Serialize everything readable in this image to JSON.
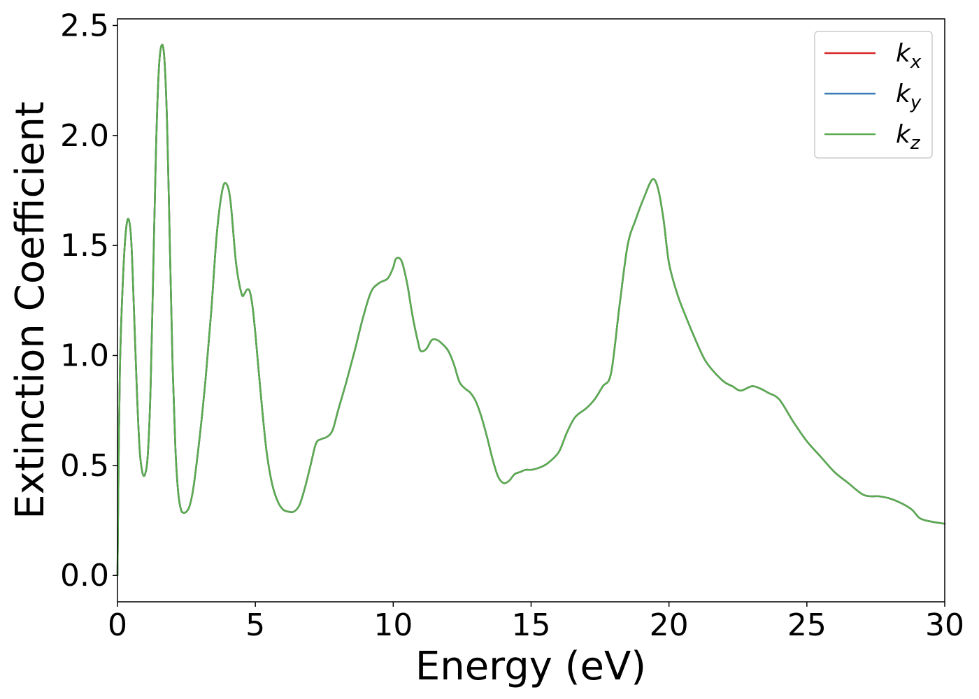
{
  "chart_data": {
    "type": "line",
    "title": "",
    "xlabel": "Energy (eV)",
    "ylabel": "Extinction Coefficient",
    "xlim": [
      0,
      30
    ],
    "ylim": [
      -0.12,
      2.53
    ],
    "xticks": [
      0,
      5,
      10,
      15,
      20,
      25,
      30
    ],
    "xtick_labels": [
      "0",
      "5",
      "10",
      "15",
      "20",
      "25",
      "30"
    ],
    "yticks": [
      0.0,
      0.5,
      1.0,
      1.5,
      2.0,
      2.5
    ],
    "ytick_labels": [
      "0.0",
      "0.5",
      "1.0",
      "1.5",
      "2.0",
      "2.5"
    ],
    "grid": false,
    "legend_position": "top-right",
    "series": [
      {
        "name": "k",
        "subscript": "x",
        "color": "#d62728",
        "x": [
          0,
          0.05,
          0.1,
          0.2,
          0.3,
          0.4,
          0.5,
          0.6,
          0.7,
          0.8,
          0.9,
          1.0,
          1.1,
          1.2,
          1.3,
          1.4,
          1.5,
          1.6,
          1.7,
          1.8,
          1.9,
          2.0,
          2.1,
          2.2,
          2.3,
          2.4,
          2.5,
          2.6,
          2.7,
          2.8,
          3.0,
          3.2,
          3.4,
          3.6,
          3.8,
          3.95,
          4.1,
          4.3,
          4.5,
          4.6,
          4.7,
          4.8,
          4.9,
          5.0,
          5.2,
          5.4,
          5.6,
          5.8,
          6.0,
          6.2,
          6.4,
          6.6,
          6.8,
          7.0,
          7.2,
          7.4,
          7.6,
          7.8,
          8.0,
          8.3,
          8.6,
          8.9,
          9.2,
          9.5,
          9.8,
          10.0,
          10.1,
          10.3,
          10.5,
          10.7,
          10.9,
          11.0,
          11.2,
          11.4,
          11.6,
          11.8,
          12.0,
          12.2,
          12.4,
          12.6,
          12.8,
          13.0,
          13.2,
          13.4,
          13.6,
          13.8,
          14.0,
          14.2,
          14.4,
          14.6,
          14.8,
          15.0,
          15.3,
          15.6,
          16.0,
          16.3,
          16.6,
          17.0,
          17.3,
          17.6,
          17.9,
          18.2,
          18.5,
          18.8,
          19.1,
          19.4,
          19.6,
          19.8,
          20.0,
          20.3,
          20.6,
          21.0,
          21.3,
          21.6,
          22.0,
          22.3,
          22.6,
          23.0,
          23.3,
          23.6,
          24.0,
          24.5,
          25.0,
          25.5,
          26.0,
          26.5,
          27.0,
          27.3,
          27.6,
          28.0,
          28.4,
          28.8,
          29.1,
          29.5,
          30.0
        ],
        "values": [
          0.0,
          0.6,
          1.0,
          1.35,
          1.56,
          1.62,
          1.52,
          1.2,
          0.85,
          0.58,
          0.47,
          0.46,
          0.55,
          0.85,
          1.4,
          1.95,
          2.3,
          2.41,
          2.35,
          2.05,
          1.5,
          0.95,
          0.58,
          0.38,
          0.3,
          0.285,
          0.29,
          0.31,
          0.36,
          0.44,
          0.65,
          0.9,
          1.2,
          1.55,
          1.75,
          1.78,
          1.7,
          1.42,
          1.28,
          1.28,
          1.3,
          1.29,
          1.22,
          1.1,
          0.82,
          0.57,
          0.42,
          0.34,
          0.3,
          0.29,
          0.29,
          0.32,
          0.4,
          0.5,
          0.6,
          0.62,
          0.63,
          0.66,
          0.75,
          0.88,
          1.02,
          1.17,
          1.29,
          1.33,
          1.35,
          1.4,
          1.44,
          1.43,
          1.33,
          1.18,
          1.06,
          1.02,
          1.03,
          1.07,
          1.07,
          1.05,
          1.02,
          0.96,
          0.88,
          0.85,
          0.83,
          0.79,
          0.72,
          0.63,
          0.53,
          0.45,
          0.42,
          0.43,
          0.46,
          0.47,
          0.48,
          0.48,
          0.49,
          0.51,
          0.56,
          0.65,
          0.72,
          0.76,
          0.8,
          0.86,
          0.92,
          1.22,
          1.5,
          1.62,
          1.72,
          1.8,
          1.76,
          1.62,
          1.42,
          1.28,
          1.18,
          1.06,
          0.98,
          0.93,
          0.88,
          0.86,
          0.84,
          0.86,
          0.85,
          0.83,
          0.8,
          0.7,
          0.61,
          0.54,
          0.47,
          0.42,
          0.37,
          0.36,
          0.36,
          0.35,
          0.33,
          0.3,
          0.26,
          0.245,
          0.235
        ]
      },
      {
        "name": "k",
        "subscript": "y",
        "color": "#3b7bb8",
        "x": [
          0,
          0.05,
          0.1,
          0.2,
          0.3,
          0.4,
          0.5,
          0.6,
          0.7,
          0.8,
          0.9,
          1.0,
          1.1,
          1.2,
          1.3,
          1.4,
          1.5,
          1.6,
          1.7,
          1.8,
          1.9,
          2.0,
          2.1,
          2.2,
          2.3,
          2.4,
          2.5,
          2.6,
          2.7,
          2.8,
          3.0,
          3.2,
          3.4,
          3.6,
          3.8,
          3.95,
          4.1,
          4.3,
          4.5,
          4.6,
          4.7,
          4.8,
          4.9,
          5.0,
          5.2,
          5.4,
          5.6,
          5.8,
          6.0,
          6.2,
          6.4,
          6.6,
          6.8,
          7.0,
          7.2,
          7.4,
          7.6,
          7.8,
          8.0,
          8.3,
          8.6,
          8.9,
          9.2,
          9.5,
          9.8,
          10.0,
          10.1,
          10.3,
          10.5,
          10.7,
          10.9,
          11.0,
          11.2,
          11.4,
          11.6,
          11.8,
          12.0,
          12.2,
          12.4,
          12.6,
          12.8,
          13.0,
          13.2,
          13.4,
          13.6,
          13.8,
          14.0,
          14.2,
          14.4,
          14.6,
          14.8,
          15.0,
          15.3,
          15.6,
          16.0,
          16.3,
          16.6,
          17.0,
          17.3,
          17.6,
          17.9,
          18.2,
          18.5,
          18.8,
          19.1,
          19.4,
          19.6,
          19.8,
          20.0,
          20.3,
          20.6,
          21.0,
          21.3,
          21.6,
          22.0,
          22.3,
          22.6,
          23.0,
          23.3,
          23.6,
          24.0,
          24.5,
          25.0,
          25.5,
          26.0,
          26.5,
          27.0,
          27.3,
          27.6,
          28.0,
          28.4,
          28.8,
          29.1,
          29.5,
          30.0
        ],
        "values": [
          0.0,
          0.6,
          1.0,
          1.35,
          1.56,
          1.62,
          1.52,
          1.2,
          0.85,
          0.58,
          0.47,
          0.46,
          0.55,
          0.85,
          1.4,
          1.95,
          2.3,
          2.41,
          2.35,
          2.05,
          1.5,
          0.95,
          0.58,
          0.38,
          0.3,
          0.285,
          0.29,
          0.31,
          0.36,
          0.44,
          0.65,
          0.9,
          1.2,
          1.55,
          1.75,
          1.78,
          1.7,
          1.42,
          1.28,
          1.28,
          1.3,
          1.29,
          1.22,
          1.1,
          0.82,
          0.57,
          0.42,
          0.34,
          0.3,
          0.29,
          0.29,
          0.32,
          0.4,
          0.5,
          0.6,
          0.62,
          0.63,
          0.66,
          0.75,
          0.88,
          1.02,
          1.17,
          1.29,
          1.33,
          1.35,
          1.4,
          1.44,
          1.43,
          1.33,
          1.18,
          1.06,
          1.02,
          1.03,
          1.07,
          1.07,
          1.05,
          1.02,
          0.96,
          0.88,
          0.85,
          0.83,
          0.79,
          0.72,
          0.63,
          0.53,
          0.45,
          0.42,
          0.43,
          0.46,
          0.47,
          0.48,
          0.48,
          0.49,
          0.51,
          0.56,
          0.65,
          0.72,
          0.76,
          0.8,
          0.86,
          0.92,
          1.22,
          1.5,
          1.62,
          1.72,
          1.8,
          1.76,
          1.62,
          1.42,
          1.28,
          1.18,
          1.06,
          0.98,
          0.93,
          0.88,
          0.86,
          0.84,
          0.86,
          0.85,
          0.83,
          0.8,
          0.7,
          0.61,
          0.54,
          0.47,
          0.42,
          0.37,
          0.36,
          0.36,
          0.35,
          0.33,
          0.3,
          0.26,
          0.245,
          0.235
        ]
      },
      {
        "name": "k",
        "subscript": "z",
        "color": "#5aab4f",
        "x": [
          0,
          0.05,
          0.1,
          0.2,
          0.3,
          0.4,
          0.5,
          0.6,
          0.7,
          0.8,
          0.9,
          1.0,
          1.1,
          1.2,
          1.3,
          1.4,
          1.5,
          1.6,
          1.7,
          1.8,
          1.9,
          2.0,
          2.1,
          2.2,
          2.3,
          2.4,
          2.5,
          2.6,
          2.7,
          2.8,
          3.0,
          3.2,
          3.4,
          3.6,
          3.8,
          3.95,
          4.1,
          4.3,
          4.5,
          4.6,
          4.7,
          4.8,
          4.9,
          5.0,
          5.2,
          5.4,
          5.6,
          5.8,
          6.0,
          6.2,
          6.4,
          6.6,
          6.8,
          7.0,
          7.2,
          7.4,
          7.6,
          7.8,
          8.0,
          8.3,
          8.6,
          8.9,
          9.2,
          9.5,
          9.8,
          10.0,
          10.1,
          10.3,
          10.5,
          10.7,
          10.9,
          11.0,
          11.2,
          11.4,
          11.6,
          11.8,
          12.0,
          12.2,
          12.4,
          12.6,
          12.8,
          13.0,
          13.2,
          13.4,
          13.6,
          13.8,
          14.0,
          14.2,
          14.4,
          14.6,
          14.8,
          15.0,
          15.3,
          15.6,
          16.0,
          16.3,
          16.6,
          17.0,
          17.3,
          17.6,
          17.9,
          18.2,
          18.5,
          18.8,
          19.1,
          19.4,
          19.6,
          19.8,
          20.0,
          20.3,
          20.6,
          21.0,
          21.3,
          21.6,
          22.0,
          22.3,
          22.6,
          23.0,
          23.3,
          23.6,
          24.0,
          24.5,
          25.0,
          25.5,
          26.0,
          26.5,
          27.0,
          27.3,
          27.6,
          28.0,
          28.4,
          28.8,
          29.1,
          29.5,
          30.0
        ],
        "values": [
          0.0,
          0.6,
          1.0,
          1.35,
          1.56,
          1.62,
          1.52,
          1.2,
          0.85,
          0.58,
          0.47,
          0.46,
          0.55,
          0.85,
          1.4,
          1.95,
          2.3,
          2.41,
          2.35,
          2.05,
          1.5,
          0.95,
          0.58,
          0.38,
          0.3,
          0.285,
          0.29,
          0.31,
          0.36,
          0.44,
          0.65,
          0.9,
          1.2,
          1.55,
          1.75,
          1.78,
          1.7,
          1.42,
          1.28,
          1.28,
          1.3,
          1.29,
          1.22,
          1.1,
          0.82,
          0.57,
          0.42,
          0.34,
          0.3,
          0.29,
          0.29,
          0.32,
          0.4,
          0.5,
          0.6,
          0.62,
          0.63,
          0.66,
          0.75,
          0.88,
          1.02,
          1.17,
          1.29,
          1.33,
          1.35,
          1.4,
          1.44,
          1.43,
          1.33,
          1.18,
          1.06,
          1.02,
          1.03,
          1.07,
          1.07,
          1.05,
          1.02,
          0.96,
          0.88,
          0.85,
          0.83,
          0.79,
          0.72,
          0.63,
          0.53,
          0.45,
          0.42,
          0.43,
          0.46,
          0.47,
          0.48,
          0.48,
          0.49,
          0.51,
          0.56,
          0.65,
          0.72,
          0.76,
          0.8,
          0.86,
          0.92,
          1.22,
          1.5,
          1.62,
          1.72,
          1.8,
          1.76,
          1.62,
          1.42,
          1.28,
          1.18,
          1.06,
          0.98,
          0.93,
          0.88,
          0.86,
          0.84,
          0.86,
          0.85,
          0.83,
          0.8,
          0.7,
          0.61,
          0.54,
          0.47,
          0.42,
          0.37,
          0.36,
          0.36,
          0.35,
          0.33,
          0.3,
          0.26,
          0.245,
          0.235
        ]
      }
    ]
  }
}
